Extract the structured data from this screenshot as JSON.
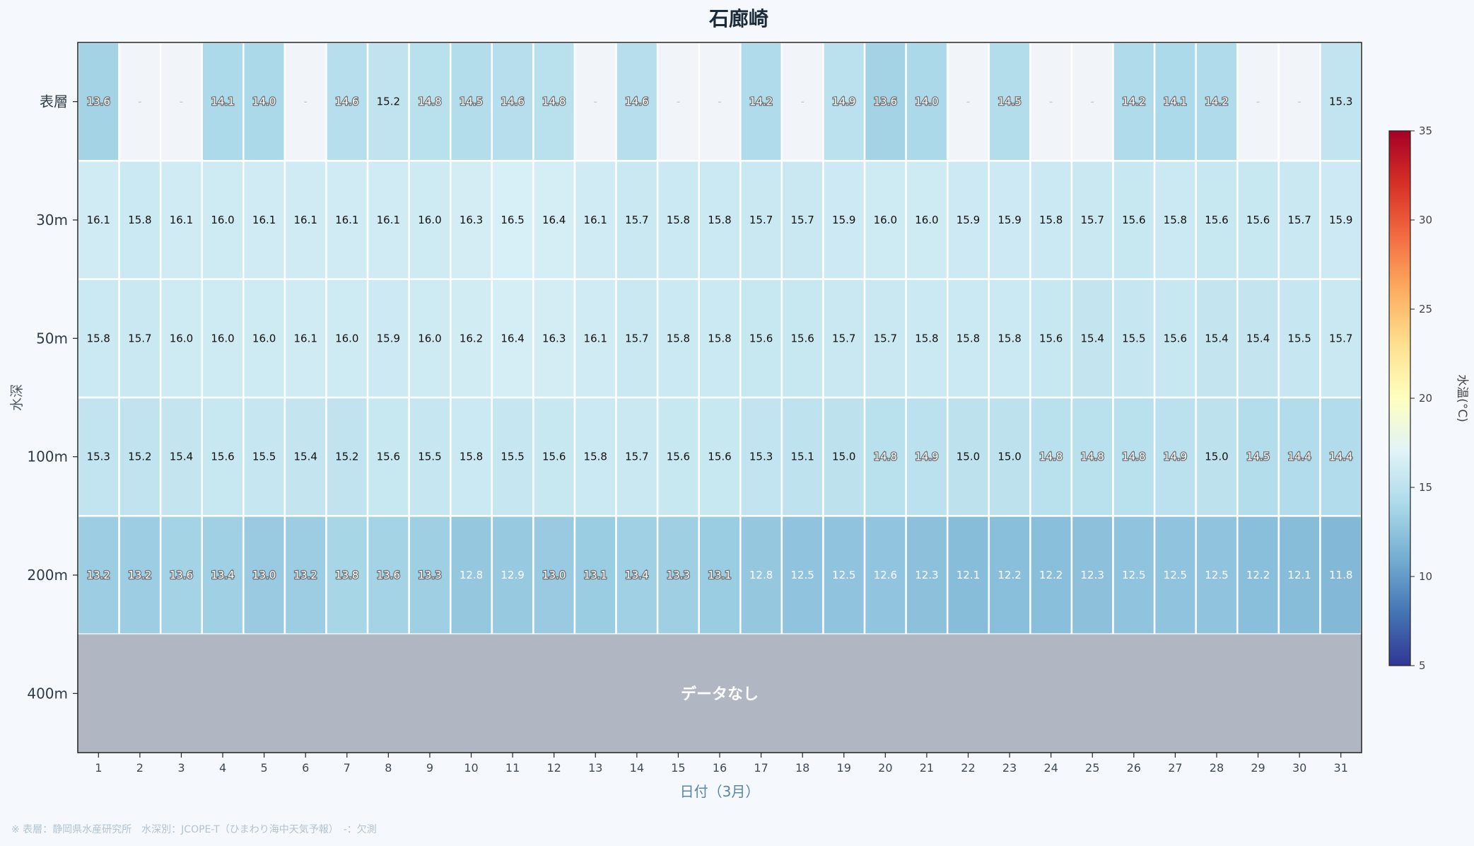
{
  "chart_data": {
    "type": "heatmap",
    "title": "石廊崎",
    "xlabel": "日付（3月）",
    "ylabel": "水深",
    "x": [
      1,
      2,
      3,
      4,
      5,
      6,
      7,
      8,
      9,
      10,
      11,
      12,
      13,
      14,
      15,
      16,
      17,
      18,
      19,
      20,
      21,
      22,
      23,
      24,
      25,
      26,
      27,
      28,
      29,
      30,
      31
    ],
    "depths": [
      "表層",
      "30m",
      "50m",
      "100m",
      "200m",
      "400m"
    ],
    "values": [
      [
        13.6,
        null,
        null,
        14.1,
        14.0,
        null,
        14.6,
        15.2,
        14.8,
        14.5,
        14.6,
        14.8,
        null,
        14.6,
        null,
        null,
        14.2,
        null,
        14.9,
        13.6,
        14.0,
        null,
        14.5,
        null,
        null,
        14.2,
        14.1,
        14.2,
        null,
        null,
        15.3
      ],
      [
        16.1,
        15.8,
        16.1,
        16.0,
        16.1,
        16.1,
        16.1,
        16.1,
        16.0,
        16.3,
        16.5,
        16.4,
        16.1,
        15.7,
        15.8,
        15.8,
        15.7,
        15.7,
        15.9,
        16.0,
        16.0,
        15.9,
        15.9,
        15.8,
        15.7,
        15.6,
        15.8,
        15.6,
        15.6,
        15.7,
        15.9
      ],
      [
        15.8,
        15.7,
        16.0,
        16.0,
        16.0,
        16.1,
        16.0,
        15.9,
        16.0,
        16.2,
        16.4,
        16.3,
        16.1,
        15.7,
        15.8,
        15.8,
        15.6,
        15.6,
        15.7,
        15.7,
        15.8,
        15.8,
        15.8,
        15.6,
        15.4,
        15.5,
        15.6,
        15.4,
        15.4,
        15.5,
        15.7
      ],
      [
        15.3,
        15.2,
        15.4,
        15.6,
        15.5,
        15.4,
        15.2,
        15.6,
        15.5,
        15.8,
        15.5,
        15.6,
        15.8,
        15.7,
        15.6,
        15.6,
        15.3,
        15.1,
        15.0,
        14.8,
        14.9,
        15.0,
        15.0,
        14.8,
        14.8,
        14.8,
        14.9,
        15.0,
        14.5,
        14.4,
        14.4
      ],
      [
        13.2,
        13.2,
        13.6,
        13.4,
        13.0,
        13.2,
        13.8,
        13.6,
        13.3,
        12.8,
        12.9,
        13.0,
        13.1,
        13.4,
        13.3,
        13.1,
        12.8,
        12.5,
        12.5,
        12.6,
        12.3,
        12.1,
        12.2,
        12.2,
        12.3,
        12.5,
        12.5,
        12.5,
        12.2,
        12.1,
        11.8
      ],
      null
    ],
    "missing_label": "-",
    "no_data_label": "データなし",
    "colorbar": {
      "label": "水温(°C)",
      "range": [
        5,
        35
      ],
      "ticks": [
        5,
        10,
        15,
        20,
        25,
        30,
        35
      ],
      "colormap": "RdYlBu_r"
    },
    "colors": {
      "missing": "#f1f5fa",
      "no_data": "#b0b7c2",
      "grid": "#ffffff"
    }
  },
  "footnote": "※ 表層：静岡県水産研究所　水深別：JCOPE-T（ひまわり海中天気予報）　-：欠測"
}
